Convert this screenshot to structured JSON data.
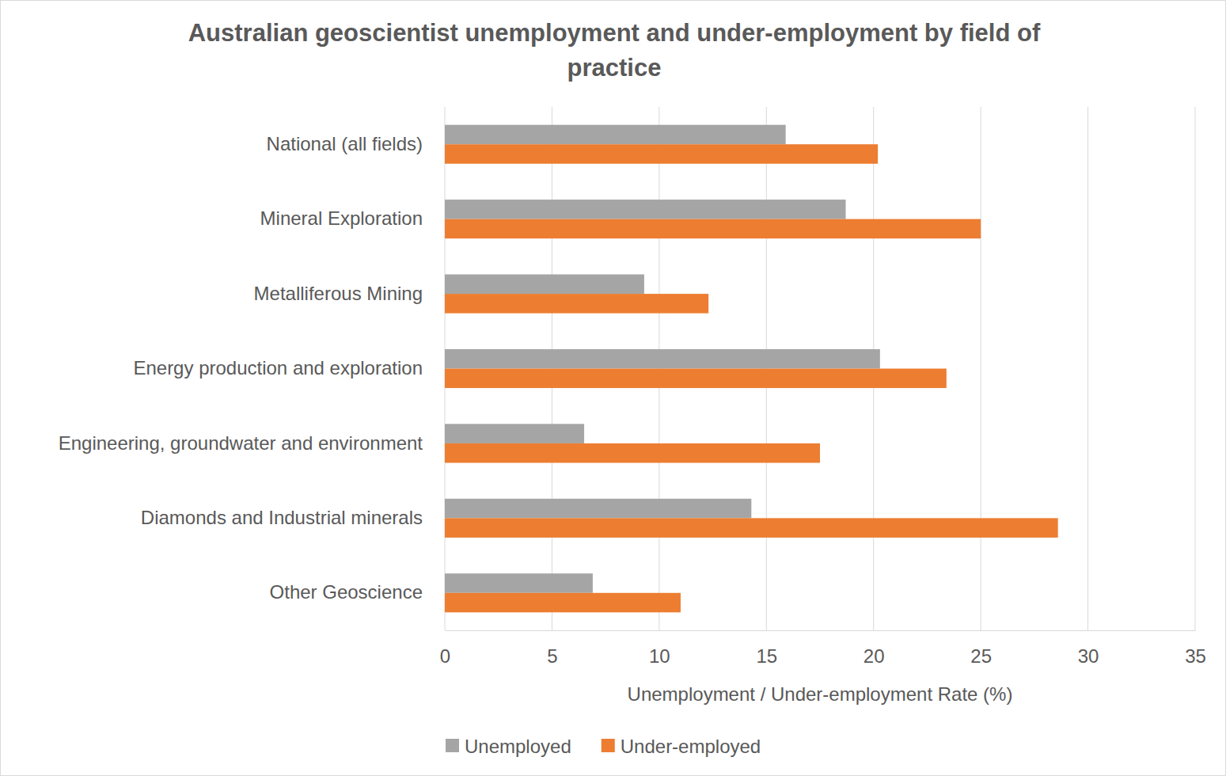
{
  "chart_data": {
    "type": "bar",
    "orientation": "horizontal",
    "title": "Australian geoscientist unemployment and under-employment by field of practice",
    "x_label": "Unemployment / Under-employment Rate (%)",
    "categories": [
      "National (all fields)",
      "Mineral Exploration",
      "Metalliferous Mining",
      "Energy production and exploration",
      "Engineering, groundwater and environment",
      "Diamonds and Industrial minerals",
      "Other Geoscience"
    ],
    "series": [
      {
        "name": "Unemployed",
        "color": "#a5a5a5",
        "values": [
          15.9,
          18.7,
          9.3,
          20.3,
          6.5,
          14.3,
          6.9
        ]
      },
      {
        "name": "Under-employed",
        "color": "#ed7d31",
        "values": [
          20.2,
          25.0,
          12.3,
          23.4,
          17.5,
          28.6,
          11.0
        ]
      }
    ],
    "xlim": [
      0,
      35
    ],
    "xticks": [
      0,
      5,
      10,
      15,
      20,
      25,
      30,
      35
    ],
    "grid": true,
    "legend": "bottom"
  }
}
